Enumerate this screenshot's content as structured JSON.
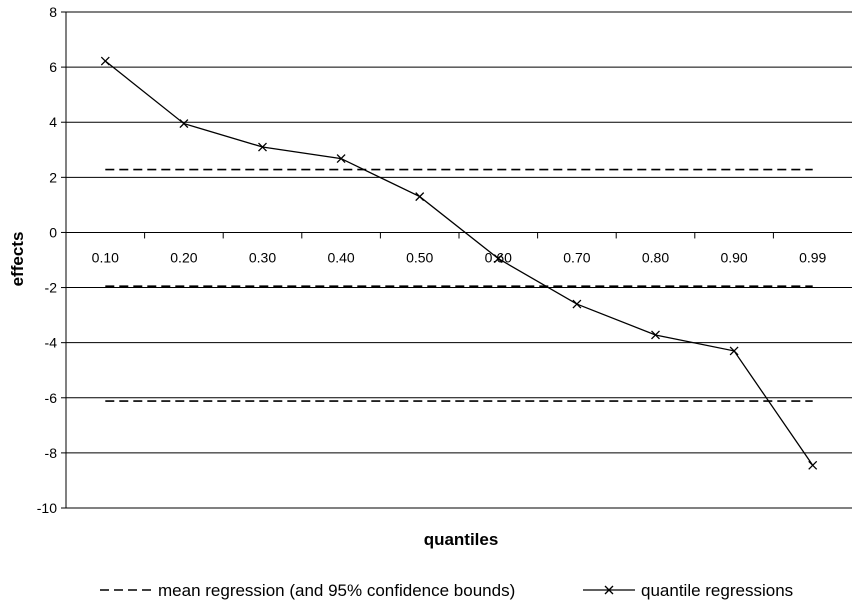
{
  "chart_data": {
    "type": "line",
    "title": "",
    "xlabel": "quantiles",
    "ylabel": "effects",
    "categories": [
      "0.10",
      "0.20",
      "0.30",
      "0.40",
      "0.50",
      "0.60",
      "0.70",
      "0.80",
      "0.90",
      "0.99"
    ],
    "ylim": [
      -10,
      8
    ],
    "yticks": [
      "8",
      "6",
      "4",
      "2",
      "0",
      "-2",
      "-4",
      "-6",
      "-8",
      "-10"
    ],
    "grid": "horizontal",
    "legend_position": "bottom",
    "series": [
      {
        "name": "quantile regressions",
        "style": "solid-x-markers",
        "values": [
          6.22,
          3.95,
          3.1,
          2.68,
          1.3,
          -0.95,
          -2.6,
          -3.72,
          -4.3,
          -8.45
        ]
      },
      {
        "name": "mean regression (and 95% confidence bounds)",
        "style": "dashed",
        "values": [
          -1.95,
          -1.95,
          -1.95,
          -1.95,
          -1.95,
          -1.95,
          -1.95,
          -1.95,
          -1.95,
          -1.95
        ]
      },
      {
        "style": "dashed",
        "values": [
          2.28,
          2.28,
          2.28,
          2.28,
          2.28,
          2.28,
          2.28,
          2.28,
          2.28,
          2.28
        ]
      },
      {
        "style": "dashed",
        "values": [
          -6.12,
          -6.12,
          -6.12,
          -6.12,
          -6.12,
          -6.12,
          -6.12,
          -6.12,
          -6.12,
          -6.12
        ]
      }
    ],
    "colors": {
      "line": "#000000",
      "grid": "#000000"
    }
  }
}
